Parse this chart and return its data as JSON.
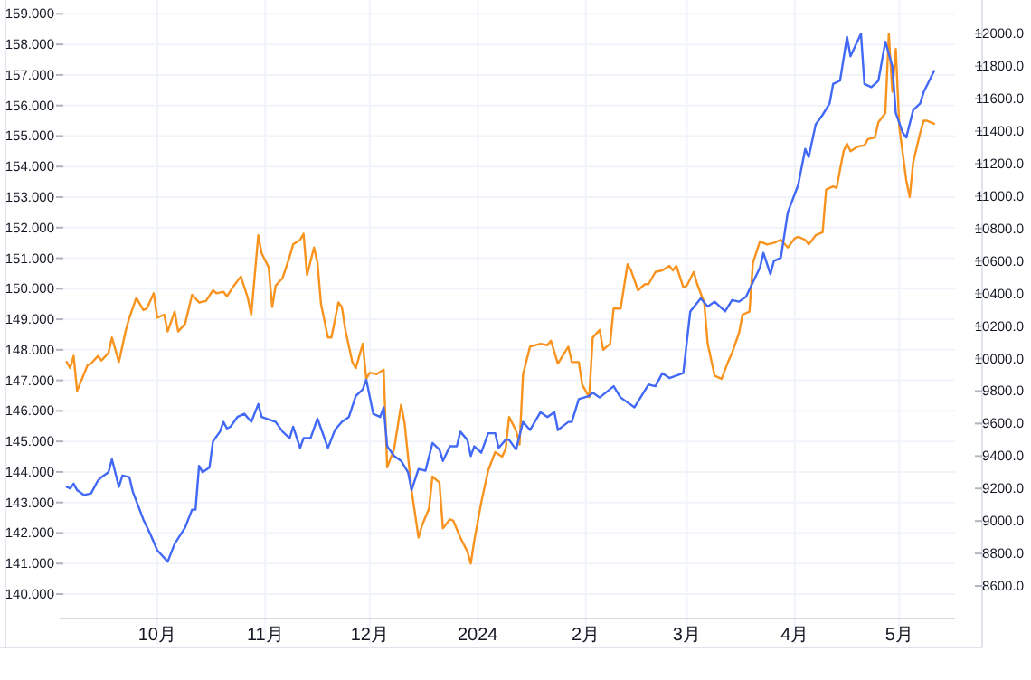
{
  "chart_data": {
    "type": "line",
    "xlim": [
      "2023-09-03",
      "2024-05-17"
    ],
    "xticks": [
      {
        "value": "2023-10-01",
        "label": "10月"
      },
      {
        "value": "2023-11-01",
        "label": "11月"
      },
      {
        "value": "2023-12-01",
        "label": "12月"
      },
      {
        "value": "2024-01-01",
        "label": "2024"
      },
      {
        "value": "2024-02-01",
        "label": "2月"
      },
      {
        "value": "2024-03-01",
        "label": "3月"
      },
      {
        "value": "2024-04-01",
        "label": "4月"
      },
      {
        "value": "2024-05-01",
        "label": "5月"
      }
    ],
    "ylim": [
      139.2,
      159.1
    ],
    "yticks": [
      {
        "value": 140,
        "label": "140.000"
      },
      {
        "value": 141,
        "label": "141.000"
      },
      {
        "value": 142,
        "label": "142.000"
      },
      {
        "value": 143,
        "label": "143.000"
      },
      {
        "value": 144,
        "label": "144.000"
      },
      {
        "value": 145,
        "label": "145.000"
      },
      {
        "value": 146,
        "label": "146.000"
      },
      {
        "value": 147,
        "label": "147.000"
      },
      {
        "value": 148,
        "label": "148.000"
      },
      {
        "value": 149,
        "label": "149.000"
      },
      {
        "value": 150,
        "label": "150.000"
      },
      {
        "value": 151,
        "label": "151.000"
      },
      {
        "value": 152,
        "label": "152.000"
      },
      {
        "value": 153,
        "label": "153.000"
      },
      {
        "value": 154,
        "label": "154.000"
      },
      {
        "value": 155,
        "label": "155.000"
      },
      {
        "value": 156,
        "label": "156.000"
      },
      {
        "value": 157,
        "label": "157.000"
      },
      {
        "value": 158,
        "label": "158.000"
      },
      {
        "value": 159,
        "label": "159.000"
      }
    ],
    "y2lim": [
      8400,
      12140
    ],
    "y2ticks": [
      {
        "value": 8600,
        "label": "8600.0"
      },
      {
        "value": 8800,
        "label": "8800.0"
      },
      {
        "value": 9000,
        "label": "9000.0"
      },
      {
        "value": 9200,
        "label": "9200.0"
      },
      {
        "value": 9400,
        "label": "9400.0"
      },
      {
        "value": 9600,
        "label": "9600.0"
      },
      {
        "value": 9800,
        "label": "9800.0"
      },
      {
        "value": 10000,
        "label": "10000.0"
      },
      {
        "value": 10200,
        "label": "10200.0"
      },
      {
        "value": 10400,
        "label": "10400.0"
      },
      {
        "value": 10600,
        "label": "10600.0"
      },
      {
        "value": 10800,
        "label": "10800.0"
      },
      {
        "value": 11000,
        "label": "11000.0"
      },
      {
        "value": 11200,
        "label": "11200.0"
      },
      {
        "value": 11400,
        "label": "11400.0"
      },
      {
        "value": 11600,
        "label": "11600.0"
      },
      {
        "value": 11800,
        "label": "11800.0"
      },
      {
        "value": 12000,
        "label": "12000.0"
      }
    ],
    "grid": true,
    "series": [
      {
        "color": "#f7931e",
        "axis": "y",
        "x": [
          "2023-09-05",
          "2023-09-06",
          "2023-09-07",
          "2023-09-08",
          "2023-09-11",
          "2023-09-12",
          "2023-09-14",
          "2023-09-15",
          "2023-09-17",
          "2023-09-18",
          "2023-09-20",
          "2023-09-22",
          "2023-09-23",
          "2023-09-25",
          "2023-09-27",
          "2023-09-28",
          "2023-09-30",
          "2023-10-01",
          "2023-10-03",
          "2023-10-04",
          "2023-10-06",
          "2023-10-07",
          "2023-10-09",
          "2023-10-11",
          "2023-10-13",
          "2023-10-15",
          "2023-10-17",
          "2023-10-18",
          "2023-10-20",
          "2023-10-21",
          "2023-10-23",
          "2023-10-25",
          "2023-10-27",
          "2023-10-28",
          "2023-10-30",
          "2023-10-31",
          "2023-11-02",
          "2023-11-03",
          "2023-11-04",
          "2023-11-06",
          "2023-11-08",
          "2023-11-09",
          "2023-11-11",
          "2023-11-12",
          "2023-11-13",
          "2023-11-15",
          "2023-11-16",
          "2023-11-17",
          "2023-11-19",
          "2023-11-20",
          "2023-11-22",
          "2023-11-23",
          "2023-11-24",
          "2023-11-26",
          "2023-11-27",
          "2023-11-29",
          "2023-11-30",
          "2023-12-01",
          "2023-12-03",
          "2023-12-05",
          "2023-12-06",
          "2023-12-08",
          "2023-12-10",
          "2023-12-11",
          "2023-12-13",
          "2023-12-15",
          "2023-12-16",
          "2023-12-18",
          "2023-12-19",
          "2023-12-21",
          "2023-12-22",
          "2023-12-24",
          "2023-12-25",
          "2023-12-27",
          "2023-12-29",
          "2023-12-30",
          "2023-12-31",
          "2024-01-02",
          "2024-01-04",
          "2024-01-06",
          "2024-01-08",
          "2024-01-09",
          "2024-01-10",
          "2024-01-12",
          "2024-01-13",
          "2024-01-14",
          "2024-01-16",
          "2024-01-19",
          "2024-01-21",
          "2024-01-22",
          "2024-01-24",
          "2024-01-27",
          "2024-01-28",
          "2024-01-30",
          "2024-01-31",
          "2024-02-02",
          "2024-02-03",
          "2024-02-05",
          "2024-02-06",
          "2024-02-08",
          "2024-02-09",
          "2024-02-11",
          "2024-02-13",
          "2024-02-14",
          "2024-02-16",
          "2024-02-18",
          "2024-02-19",
          "2024-02-21",
          "2024-02-23",
          "2024-02-25",
          "2024-02-26",
          "2024-02-27",
          "2024-02-29",
          "2024-03-01",
          "2024-03-03",
          "2024-03-04",
          "2024-03-06",
          "2024-03-07",
          "2024-03-09",
          "2024-03-11",
          "2024-03-13",
          "2024-03-14",
          "2024-03-16",
          "2024-03-17",
          "2024-03-19",
          "2024-03-20",
          "2024-03-22",
          "2024-03-24",
          "2024-03-26",
          "2024-03-28",
          "2024-03-30",
          "2024-04-01",
          "2024-04-02",
          "2024-04-04",
          "2024-04-05",
          "2024-04-07",
          "2024-04-09",
          "2024-04-10",
          "2024-04-12",
          "2024-04-13",
          "2024-04-15",
          "2024-04-16",
          "2024-04-17",
          "2024-04-19",
          "2024-04-21",
          "2024-04-22",
          "2024-04-24",
          "2024-04-25",
          "2024-04-27",
          "2024-04-28",
          "2024-04-29",
          "2024-04-30",
          "2024-05-01",
          "2024-05-03",
          "2024-05-04",
          "2024-05-05",
          "2024-05-07",
          "2024-05-08",
          "2024-05-09",
          "2024-05-11"
        ],
        "values": [
          147.6,
          147.4,
          147.8,
          146.65,
          147.5,
          147.55,
          147.8,
          147.65,
          147.9,
          148.4,
          147.6,
          148.65,
          149.05,
          149.7,
          149.3,
          149.35,
          149.85,
          149.05,
          149.15,
          148.6,
          149.25,
          148.6,
          148.85,
          149.8,
          149.55,
          149.6,
          149.95,
          149.85,
          149.9,
          149.75,
          150.1,
          150.4,
          149.7,
          149.15,
          151.75,
          151.15,
          150.7,
          149.4,
          150.1,
          150.35,
          151.05,
          151.45,
          151.6,
          151.8,
          150.45,
          151.35,
          150.85,
          149.5,
          148.4,
          148.4,
          149.55,
          149.4,
          148.65,
          147.6,
          147.4,
          148.2,
          147.05,
          147.25,
          147.2,
          147.35,
          144.15,
          144.75,
          146.2,
          145.6,
          143.4,
          141.85,
          142.25,
          142.8,
          143.85,
          143.65,
          142.15,
          142.45,
          142.4,
          141.85,
          141.4,
          141.0,
          141.75,
          143.0,
          144.05,
          144.65,
          144.5,
          144.75,
          145.8,
          145.35,
          144.9,
          147.2,
          148.1,
          148.2,
          148.15,
          148.3,
          147.55,
          148.1,
          147.6,
          147.6,
          146.85,
          146.45,
          148.4,
          148.65,
          148.0,
          148.2,
          149.35,
          149.35,
          150.8,
          150.6,
          149.95,
          150.15,
          150.15,
          150.55,
          150.6,
          150.75,
          150.6,
          150.75,
          150.05,
          150.1,
          150.55,
          150.15,
          149.55,
          148.2,
          147.15,
          147.05,
          147.65,
          147.9,
          148.55,
          149.15,
          149.25,
          150.85,
          151.55,
          151.45,
          151.5,
          151.6,
          151.35,
          151.65,
          151.7,
          151.6,
          151.45,
          151.75,
          151.85,
          153.25,
          153.35,
          153.3,
          154.5,
          154.75,
          154.5,
          154.65,
          154.7,
          154.9,
          154.95,
          155.45,
          155.75,
          158.35,
          156.45,
          157.85,
          155.3,
          153.55,
          153.0,
          154.15,
          155.1,
          155.5,
          155.5,
          155.4
        ]
      },
      {
        "color": "#4169f5",
        "axis": "y2",
        "x": [
          "2023-09-05",
          "2023-09-06",
          "2023-09-07",
          "2023-09-08",
          "2023-09-10",
          "2023-09-12",
          "2023-09-14",
          "2023-09-15",
          "2023-09-17",
          "2023-09-18",
          "2023-09-20",
          "2023-09-21",
          "2023-09-23",
          "2023-09-24",
          "2023-09-27",
          "2023-09-29",
          "2023-10-01",
          "2023-10-04",
          "2023-10-06",
          "2023-10-09",
          "2023-10-11",
          "2023-10-12",
          "2023-10-13",
          "2023-10-14",
          "2023-10-16",
          "2023-10-17",
          "2023-10-19",
          "2023-10-20",
          "2023-10-21",
          "2023-10-22",
          "2023-10-24",
          "2023-10-26",
          "2023-10-28",
          "2023-10-30",
          "2023-10-31",
          "2023-11-04",
          "2023-11-06",
          "2023-11-08",
          "2023-11-09",
          "2023-11-11",
          "2023-11-12",
          "2023-11-14",
          "2023-11-16",
          "2023-11-19",
          "2023-11-21",
          "2023-11-23",
          "2023-11-25",
          "2023-11-27",
          "2023-11-29",
          "2023-11-30",
          "2023-12-02",
          "2023-12-04",
          "2023-12-05",
          "2023-12-06",
          "2023-12-08",
          "2023-12-10",
          "2023-12-12",
          "2023-12-13",
          "2023-12-15",
          "2023-12-17",
          "2023-12-19",
          "2023-12-21",
          "2023-12-22",
          "2023-12-24",
          "2023-12-26",
          "2023-12-27",
          "2023-12-29",
          "2023-12-30",
          "2023-12-31",
          "2024-01-02",
          "2024-01-04",
          "2024-01-06",
          "2024-01-07",
          "2024-01-09",
          "2024-01-10",
          "2024-01-12",
          "2024-01-14",
          "2024-01-16",
          "2024-01-19",
          "2024-01-21",
          "2024-01-23",
          "2024-01-24",
          "2024-01-27",
          "2024-01-28",
          "2024-01-30",
          "2024-02-02",
          "2024-02-03",
          "2024-02-05",
          "2024-02-09",
          "2024-02-11",
          "2024-02-15",
          "2024-02-17",
          "2024-02-19",
          "2024-02-21",
          "2024-02-23",
          "2024-02-25",
          "2024-02-29",
          "2024-03-02",
          "2024-03-05",
          "2024-03-07",
          "2024-03-09",
          "2024-03-12",
          "2024-03-14",
          "2024-03-16",
          "2024-03-18",
          "2024-03-20",
          "2024-03-22",
          "2024-03-23",
          "2024-03-25",
          "2024-03-26",
          "2024-03-28",
          "2024-03-30",
          "2024-04-02",
          "2024-04-04",
          "2024-04-05",
          "2024-04-07",
          "2024-04-09",
          "2024-04-11",
          "2024-04-12",
          "2024-04-14",
          "2024-04-16",
          "2024-04-17",
          "2024-04-20",
          "2024-04-21",
          "2024-04-23",
          "2024-04-25",
          "2024-04-27",
          "2024-04-29",
          "2024-04-30",
          "2024-05-02",
          "2024-05-03",
          "2024-05-05",
          "2024-05-07",
          "2024-05-08",
          "2024-05-11"
        ],
        "values": [
          9210,
          9200,
          9230,
          9190,
          9160,
          9170,
          9250,
          9270,
          9300,
          9380,
          9210,
          9280,
          9270,
          9180,
          9010,
          8920,
          8820,
          8750,
          8860,
          8960,
          9070,
          9070,
          9340,
          9300,
          9330,
          9490,
          9550,
          9610,
          9570,
          9580,
          9640,
          9660,
          9610,
          9720,
          9640,
          9610,
          9550,
          9510,
          9580,
          9450,
          9510,
          9510,
          9630,
          9450,
          9560,
          9610,
          9640,
          9770,
          9810,
          9870,
          9660,
          9640,
          9700,
          9460,
          9400,
          9370,
          9300,
          9190,
          9320,
          9310,
          9480,
          9440,
          9370,
          9460,
          9460,
          9550,
          9500,
          9400,
          9460,
          9420,
          9540,
          9540,
          9450,
          9500,
          9500,
          9440,
          9610,
          9560,
          9670,
          9640,
          9670,
          9560,
          9610,
          9610,
          9750,
          9770,
          9790,
          9760,
          9830,
          9760,
          9700,
          9770,
          9840,
          9830,
          9910,
          9880,
          9910,
          10290,
          10370,
          10320,
          10350,
          10290,
          10360,
          10350,
          10380,
          10470,
          10560,
          10650,
          10520,
          10600,
          10620,
          10900,
          11070,
          11290,
          11240,
          11440,
          11500,
          11570,
          11690,
          11710,
          11980,
          11860,
          12000,
          11690,
          11670,
          11710,
          11950,
          11800,
          11510,
          11390,
          11360,
          11530,
          11570,
          11640,
          11770
        ]
      }
    ]
  }
}
